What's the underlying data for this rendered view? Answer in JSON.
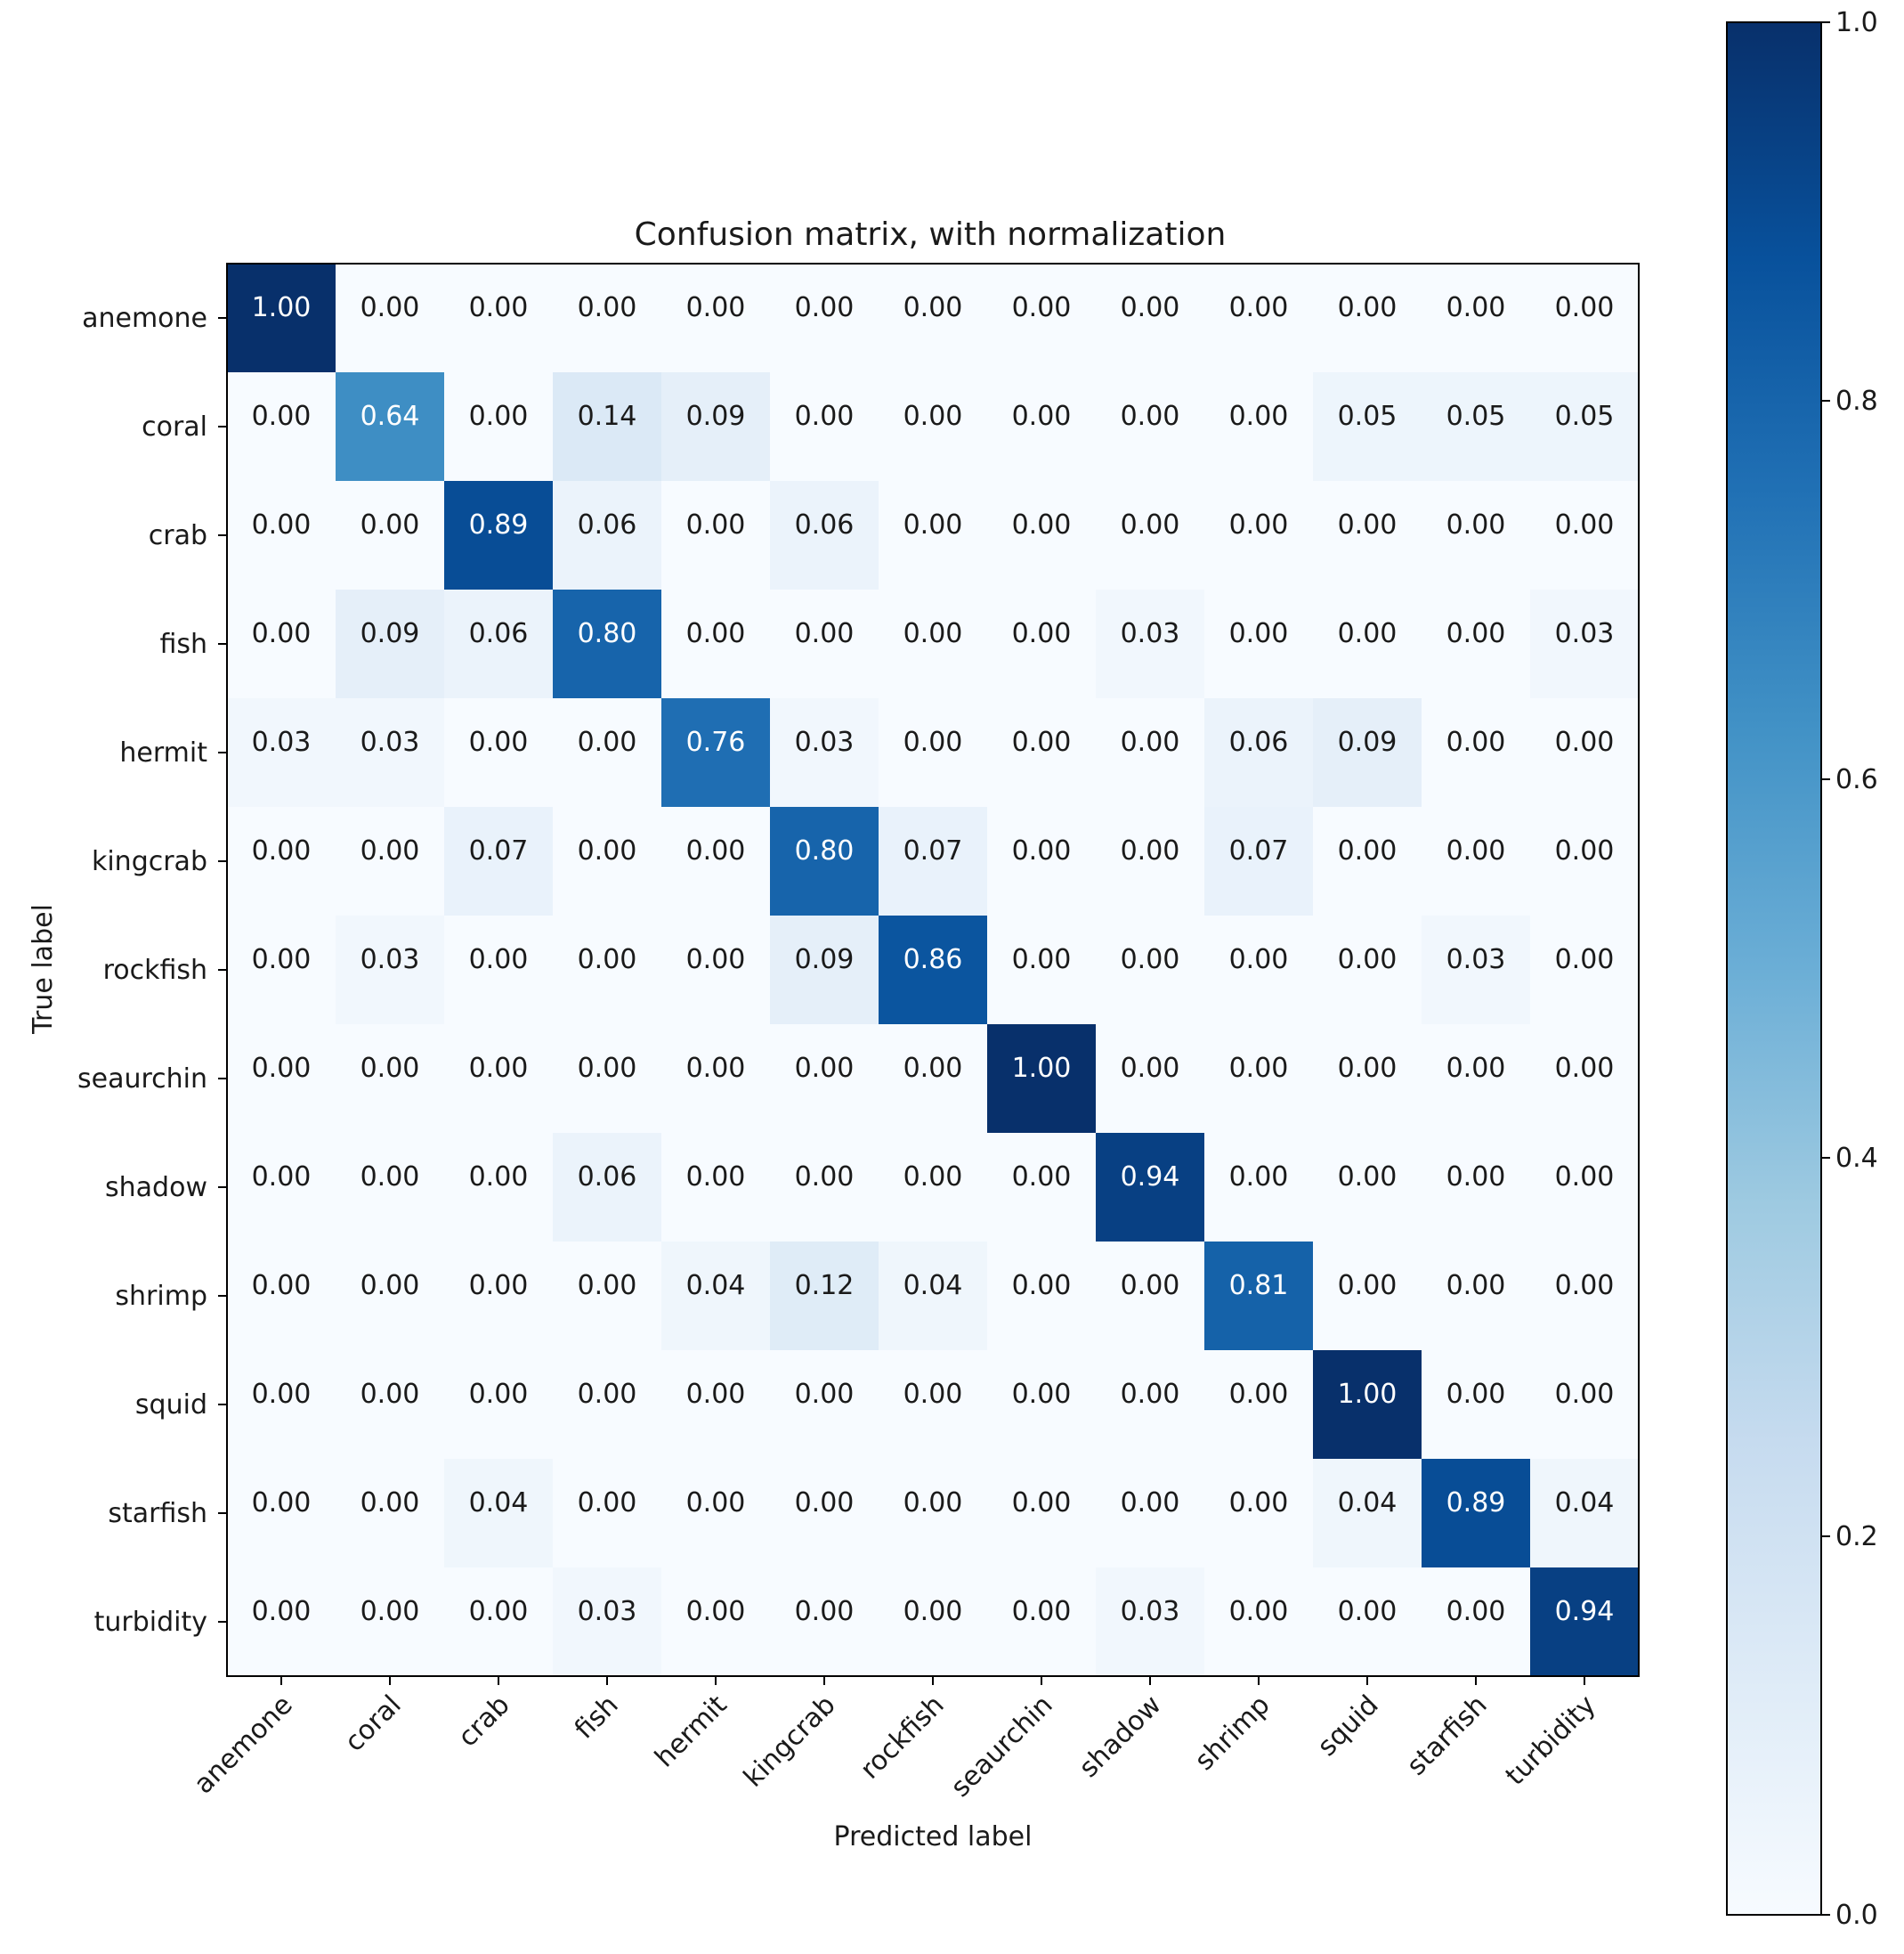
{
  "chart_data": {
    "type": "heatmap",
    "title": "Confusion matrix, with normalization",
    "xlabel": "Predicted label",
    "ylabel": "True label",
    "x_categories": [
      "anemone",
      "coral",
      "crab",
      "fish",
      "hermit",
      "kingcrab",
      "rockfish",
      "seaurchin",
      "shadow",
      "shrimp",
      "squid",
      "starfish",
      "turbidity"
    ],
    "y_categories": [
      "anemone",
      "coral",
      "crab",
      "fish",
      "hermit",
      "kingcrab",
      "rockfish",
      "seaurchin",
      "shadow",
      "shrimp",
      "squid",
      "starfish",
      "turbidity"
    ],
    "values": [
      [
        1.0,
        0.0,
        0.0,
        0.0,
        0.0,
        0.0,
        0.0,
        0.0,
        0.0,
        0.0,
        0.0,
        0.0,
        0.0
      ],
      [
        0.0,
        0.64,
        0.0,
        0.14,
        0.09,
        0.0,
        0.0,
        0.0,
        0.0,
        0.0,
        0.05,
        0.05,
        0.05
      ],
      [
        0.0,
        0.0,
        0.89,
        0.06,
        0.0,
        0.06,
        0.0,
        0.0,
        0.0,
        0.0,
        0.0,
        0.0,
        0.0
      ],
      [
        0.0,
        0.09,
        0.06,
        0.8,
        0.0,
        0.0,
        0.0,
        0.0,
        0.03,
        0.0,
        0.0,
        0.0,
        0.03
      ],
      [
        0.03,
        0.03,
        0.0,
        0.0,
        0.76,
        0.03,
        0.0,
        0.0,
        0.0,
        0.06,
        0.09,
        0.0,
        0.0
      ],
      [
        0.0,
        0.0,
        0.07,
        0.0,
        0.0,
        0.8,
        0.07,
        0.0,
        0.0,
        0.07,
        0.0,
        0.0,
        0.0
      ],
      [
        0.0,
        0.03,
        0.0,
        0.0,
        0.0,
        0.09,
        0.86,
        0.0,
        0.0,
        0.0,
        0.0,
        0.03,
        0.0
      ],
      [
        0.0,
        0.0,
        0.0,
        0.0,
        0.0,
        0.0,
        0.0,
        1.0,
        0.0,
        0.0,
        0.0,
        0.0,
        0.0
      ],
      [
        0.0,
        0.0,
        0.0,
        0.06,
        0.0,
        0.0,
        0.0,
        0.0,
        0.94,
        0.0,
        0.0,
        0.0,
        0.0
      ],
      [
        0.0,
        0.0,
        0.0,
        0.0,
        0.04,
        0.12,
        0.04,
        0.0,
        0.0,
        0.81,
        0.0,
        0.0,
        0.0
      ],
      [
        0.0,
        0.0,
        0.0,
        0.0,
        0.0,
        0.0,
        0.0,
        0.0,
        0.0,
        0.0,
        1.0,
        0.0,
        0.0
      ],
      [
        0.0,
        0.0,
        0.04,
        0.0,
        0.0,
        0.0,
        0.0,
        0.0,
        0.0,
        0.0,
        0.04,
        0.89,
        0.04
      ],
      [
        0.0,
        0.0,
        0.0,
        0.03,
        0.0,
        0.0,
        0.0,
        0.0,
        0.03,
        0.0,
        0.0,
        0.0,
        0.94
      ]
    ],
    "colorbar": {
      "range": [
        0.0,
        1.0
      ],
      "ticks": [
        0.0,
        0.2,
        0.4,
        0.6,
        0.8,
        1.0
      ],
      "tick_labels": [
        "0.0",
        "0.2",
        "0.4",
        "0.6",
        "0.8",
        "1.0"
      ],
      "colormap": "Blues"
    },
    "cell_text_threshold": 0.5,
    "colors": {
      "text_dark": "#1a1a1a",
      "text_light": "#ffffff",
      "frame": "#000000"
    }
  }
}
